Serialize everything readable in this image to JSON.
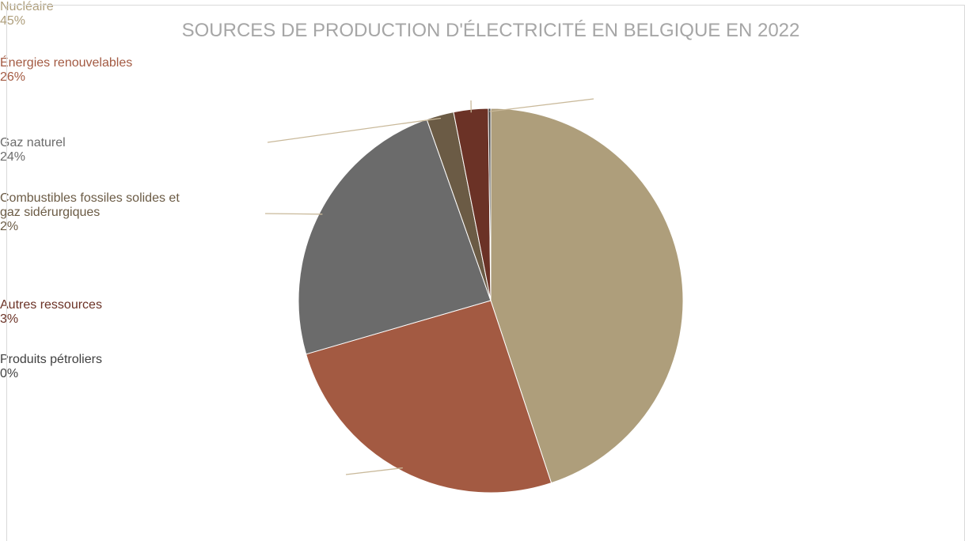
{
  "chart_data": {
    "type": "pie",
    "title": "SOURCES DE PRODUCTION D'ÉLECTRICITÉ EN BELGIQUE EN 2022",
    "categories": [
      "Nucléaire",
      "Énergies renouvelables",
      "Gaz naturel",
      "Combustibles fossiles solides et gaz sidérurgiques",
      "Autres ressources",
      "Produits pétroliers"
    ],
    "values": [
      44.9,
      25.6,
      24.1,
      2.3,
      2.9,
      0.2
    ],
    "value_labels": [
      "45%",
      "26%",
      "24%",
      "2%",
      "3%",
      "0%"
    ],
    "colors": [
      "#ae9e7b",
      "#a35a42",
      "#6b6b6b",
      "#6b5b45",
      "#6b3226",
      "#3a3a3a"
    ]
  }
}
